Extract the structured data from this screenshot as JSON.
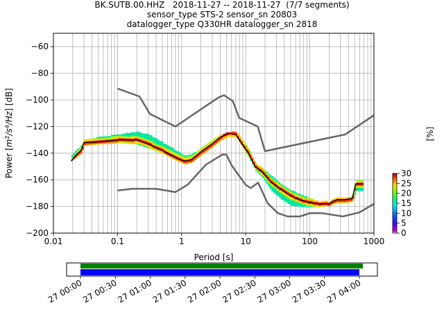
{
  "title_lines": [
    "BK.SUTB.00.HHZ   2018-11-27 -- 2018-11-27  (7/7 segments)",
    "sensor_type STS-2 sensor_sn 20803",
    "datalogger_type Q330HR datalogger_sn 2818"
  ],
  "chart_data": {
    "type": "line",
    "xscale": "log",
    "xlabel": "Period [s]",
    "ylabel_prefix": "Power [",
    "ylabel_suffix": "] [dB]",
    "xlim": [
      0.01,
      1000
    ],
    "ylim": [
      -200,
      -50
    ],
    "xticks": [
      {
        "value": 0.01,
        "label": "0.01"
      },
      {
        "value": 0.1,
        "label": "0.1"
      },
      {
        "value": 1,
        "label": "1"
      },
      {
        "value": 10,
        "label": "10"
      },
      {
        "value": 100,
        "label": "100"
      },
      {
        "value": 1000,
        "label": "1000"
      }
    ],
    "yticks": [
      {
        "value": -60,
        "label": "−60"
      },
      {
        "value": -80,
        "label": "−80"
      },
      {
        "value": -100,
        "label": "−100"
      },
      {
        "value": -120,
        "label": "−120"
      },
      {
        "value": -140,
        "label": "−140"
      },
      {
        "value": -160,
        "label": "−160"
      },
      {
        "value": -180,
        "label": "−180"
      },
      {
        "value": -200,
        "label": "−200"
      }
    ],
    "grid": true,
    "nhnm": [
      [
        0.1,
        -91.5
      ],
      [
        0.22,
        -97.4
      ],
      [
        0.32,
        -110.5
      ],
      [
        0.8,
        -120
      ],
      [
        3.8,
        -98
      ],
      [
        4.6,
        -96.5
      ],
      [
        6.3,
        -101
      ],
      [
        7.9,
        -113.5
      ],
      [
        15.4,
        -120
      ],
      [
        20,
        -138.5
      ],
      [
        354.8,
        -126
      ],
      [
        1000,
        -111.5
      ]
    ],
    "nlnm": [
      [
        0.1,
        -168
      ],
      [
        0.17,
        -166.7
      ],
      [
        0.4,
        -166.7
      ],
      [
        0.8,
        -169.2
      ],
      [
        1.24,
        -163.7
      ],
      [
        2.4,
        -148.6
      ],
      [
        4.3,
        -141.1
      ],
      [
        5,
        -141.1
      ],
      [
        6,
        -149
      ],
      [
        10,
        -163.8
      ],
      [
        12,
        -166.2
      ],
      [
        15.6,
        -162.1
      ],
      [
        21.9,
        -177.5
      ],
      [
        31.6,
        -185
      ],
      [
        45,
        -187.5
      ],
      [
        70,
        -187.5
      ],
      [
        101,
        -185
      ],
      [
        154,
        -185
      ],
      [
        328,
        -187.5
      ],
      [
        600,
        -184.4
      ],
      [
        1000,
        -178
      ]
    ],
    "mode": [
      [
        0.019,
        -146
      ],
      [
        0.022,
        -142
      ],
      [
        0.027,
        -138
      ],
      [
        0.03,
        -132
      ],
      [
        0.05,
        -131.5
      ],
      [
        0.1,
        -130
      ],
      [
        0.2,
        -130
      ],
      [
        0.3,
        -133
      ],
      [
        0.5,
        -138
      ],
      [
        0.8,
        -143
      ],
      [
        1.1,
        -146
      ],
      [
        1.4,
        -145
      ],
      [
        2,
        -139
      ],
      [
        3,
        -133
      ],
      [
        4,
        -128
      ],
      [
        5.5,
        -125
      ],
      [
        7,
        -126
      ],
      [
        9,
        -134
      ],
      [
        11,
        -140
      ],
      [
        14,
        -150
      ],
      [
        18,
        -154
      ],
      [
        25,
        -162
      ],
      [
        35,
        -167
      ],
      [
        50,
        -172
      ],
      [
        80,
        -176
      ],
      [
        130,
        -178
      ],
      [
        200,
        -178
      ],
      [
        260,
        -175
      ],
      [
        350,
        -175
      ],
      [
        460,
        -174
      ],
      [
        520,
        -163
      ],
      [
        680,
        -163
      ]
    ],
    "density": [
      [
        0.019,
        -145,
        -141
      ],
      [
        0.022,
        -143,
        -138
      ],
      [
        0.027,
        -140,
        -134
      ],
      [
        0.03,
        -134,
        -130
      ],
      [
        0.05,
        -133,
        -128
      ],
      [
        0.1,
        -132,
        -126
      ],
      [
        0.2,
        -133,
        -124
      ],
      [
        0.3,
        -136,
        -126
      ],
      [
        0.5,
        -140,
        -132
      ],
      [
        0.8,
        -145,
        -138
      ],
      [
        1.1,
        -148,
        -142
      ],
      [
        1.4,
        -147,
        -141
      ],
      [
        2,
        -141,
        -136
      ],
      [
        3,
        -135,
        -130
      ],
      [
        4,
        -130,
        -126
      ],
      [
        5.5,
        -127,
        -124
      ],
      [
        7,
        -128,
        -124
      ],
      [
        9,
        -136,
        -131
      ],
      [
        11,
        -143,
        -137
      ],
      [
        14,
        -153,
        -148
      ],
      [
        18,
        -158,
        -151
      ],
      [
        25,
        -168,
        -157
      ],
      [
        35,
        -174,
        -163
      ],
      [
        50,
        -179,
        -168
      ],
      [
        80,
        -180,
        -172
      ],
      [
        130,
        -180,
        -176
      ],
      [
        200,
        -179,
        -176
      ],
      [
        260,
        -177,
        -173
      ],
      [
        350,
        -177,
        -173
      ],
      [
        460,
        -176,
        -172
      ],
      [
        520,
        -168,
        -160
      ],
      [
        680,
        -168,
        -160
      ]
    ],
    "colorbar": {
      "label": "[%]",
      "min": 0,
      "max": 30,
      "ticks": [
        {
          "value": 0,
          "label": "0"
        },
        {
          "value": 5,
          "label": "5"
        },
        {
          "value": 10,
          "label": "10"
        },
        {
          "value": 15,
          "label": "15"
        },
        {
          "value": 20,
          "label": "20"
        },
        {
          "value": 25,
          "label": "25"
        },
        {
          "value": 30,
          "label": "30"
        }
      ]
    },
    "timeline": {
      "ticks": [
        "27 00:00",
        "27 00:30",
        "27 01:00",
        "27 01:30",
        "27 02:00",
        "27 02:30",
        "27 03:00",
        "27 03:30",
        "27 04:00"
      ],
      "data_fraction_start": 0.0,
      "green_fraction_end": 1.013,
      "blue_fraction_end": 1.0,
      "green_color": "#008000",
      "blue_color": "#0000ff"
    },
    "colors": {
      "model_line": "#666666",
      "mode_line": "#000000",
      "low_density": "#00e5a0",
      "high_density": "#ff3010"
    }
  }
}
